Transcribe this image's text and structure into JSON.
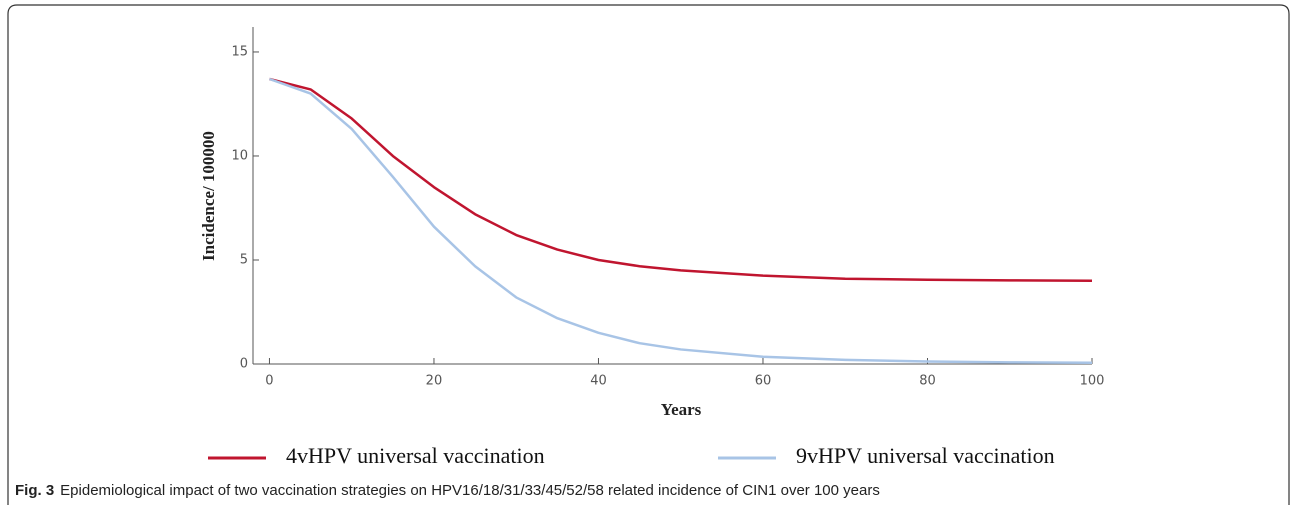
{
  "chart_data": {
    "type": "line",
    "x_label": "Years",
    "y_label": "Incidence/ 100000",
    "x": [
      0,
      5,
      10,
      15,
      20,
      25,
      30,
      35,
      40,
      45,
      50,
      60,
      70,
      80,
      90,
      100
    ],
    "series": [
      {
        "name": "4vHPV universal vaccination",
        "color": "#c0152f",
        "values": [
          13.7,
          13.2,
          11.8,
          10.0,
          8.5,
          7.2,
          6.2,
          5.5,
          5.0,
          4.7,
          4.5,
          4.25,
          4.1,
          4.05,
          4.02,
          4.0
        ]
      },
      {
        "name": "9vHPV universal vaccination",
        "color": "#a8c4e6",
        "values": [
          13.7,
          13.0,
          11.3,
          9.0,
          6.6,
          4.7,
          3.2,
          2.2,
          1.5,
          1.0,
          0.7,
          0.35,
          0.2,
          0.12,
          0.08,
          0.06
        ]
      }
    ],
    "xlim": [
      -2,
      100
    ],
    "xticks": [
      0,
      20,
      40,
      60,
      80,
      100
    ],
    "ylim": [
      0,
      16.2
    ],
    "yticks": [
      0,
      5,
      10,
      15
    ],
    "legend": "bottom"
  },
  "caption_label": "Fig. 3",
  "caption": "Epidemiological impact of two vaccination strategies on HPV16/18/31/33/45/52/58 related incidence of CIN1 over 100 years"
}
